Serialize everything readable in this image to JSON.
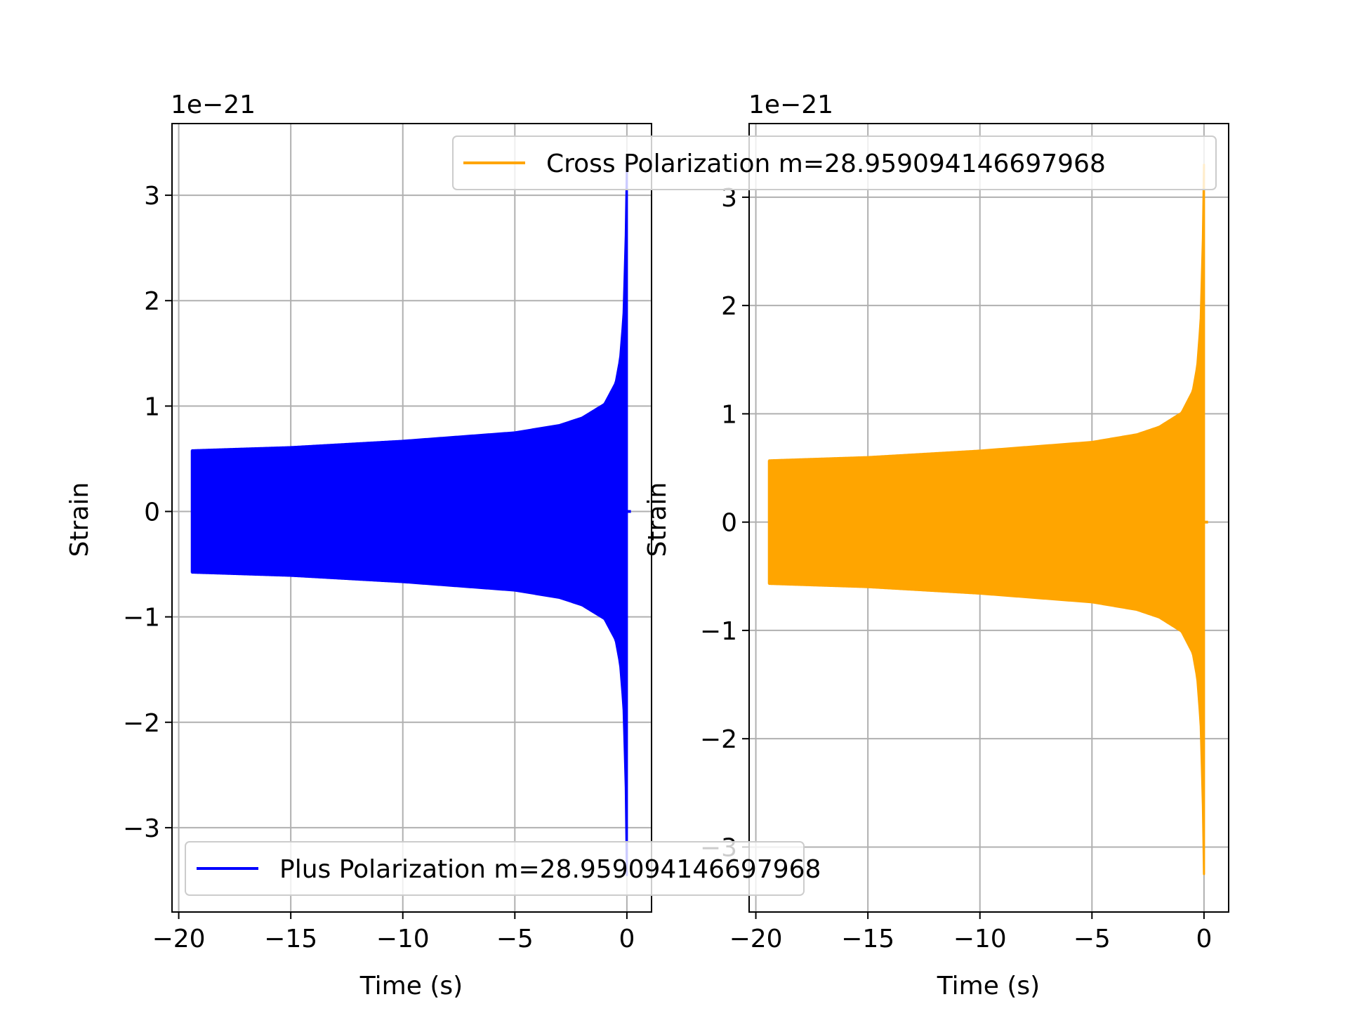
{
  "figure": {
    "background": "#ffffff"
  },
  "chart_data": [
    {
      "type": "line",
      "xlabel": "Time (s)",
      "ylabel": "Strain",
      "y_offset_label": "1e−21",
      "xlim": [
        -20.3,
        1.1
      ],
      "ylim": [
        -3.8,
        3.68
      ],
      "xticks": [
        -20,
        -15,
        -10,
        -5,
        0
      ],
      "xtick_labels": [
        "−20",
        "−15",
        "−10",
        "−5",
        "0"
      ],
      "yticks": [
        -3,
        -2,
        -1,
        0,
        1,
        2,
        3
      ],
      "ytick_labels": [
        "−3",
        "−2",
        "−1",
        "0",
        "1",
        "2",
        "3"
      ],
      "grid": true,
      "legend": {
        "placement": "lower-left"
      },
      "series": [
        {
          "name": "Plus Polarization m=28.959094146697968",
          "color": "#0000ff",
          "t_start": -19.4,
          "t_merger": 0.0,
          "t_end": 0.18,
          "envelope": {
            "t": [
              -19.4,
              -15,
              -10,
              -5,
              -3,
              -2,
              -1,
              -0.5,
              -0.3,
              -0.15,
              -0.05,
              0.0
            ],
            "amp": [
              0.58,
              0.61,
              0.67,
              0.75,
              0.82,
              0.89,
              1.02,
              1.22,
              1.45,
              1.85,
              2.6,
              3.3
            ]
          },
          "merger_min": -3.45
        }
      ]
    },
    {
      "type": "line",
      "xlabel": "Time (s)",
      "ylabel": "Strain",
      "y_offset_label": "1e−21",
      "xlim": [
        -20.3,
        1.1
      ],
      "ylim": [
        -3.6,
        3.68
      ],
      "xticks": [
        -20,
        -15,
        -10,
        -5,
        0
      ],
      "xtick_labels": [
        "−20",
        "−15",
        "−10",
        "−5",
        "0"
      ],
      "yticks": [
        -3,
        -2,
        -1,
        0,
        1,
        2,
        3
      ],
      "ytick_labels": [
        "−3",
        "−2",
        "−1",
        "0",
        "1",
        "2",
        "3"
      ],
      "grid": true,
      "legend": {
        "placement": "upper-right"
      },
      "series": [
        {
          "name": "Cross Polarization m=28.959094146697968",
          "color": "#ffa500",
          "t_start": -19.4,
          "t_merger": 0.0,
          "t_end": 0.18,
          "envelope": {
            "t": [
              -19.4,
              -15,
              -10,
              -5,
              -3,
              -2,
              -1,
              -0.5,
              -0.3,
              -0.15,
              -0.05,
              0.0
            ],
            "amp": [
              0.57,
              0.6,
              0.66,
              0.74,
              0.81,
              0.88,
              1.01,
              1.21,
              1.44,
              1.85,
              2.6,
              3.3
            ]
          },
          "merger_min": -3.25
        }
      ]
    }
  ]
}
